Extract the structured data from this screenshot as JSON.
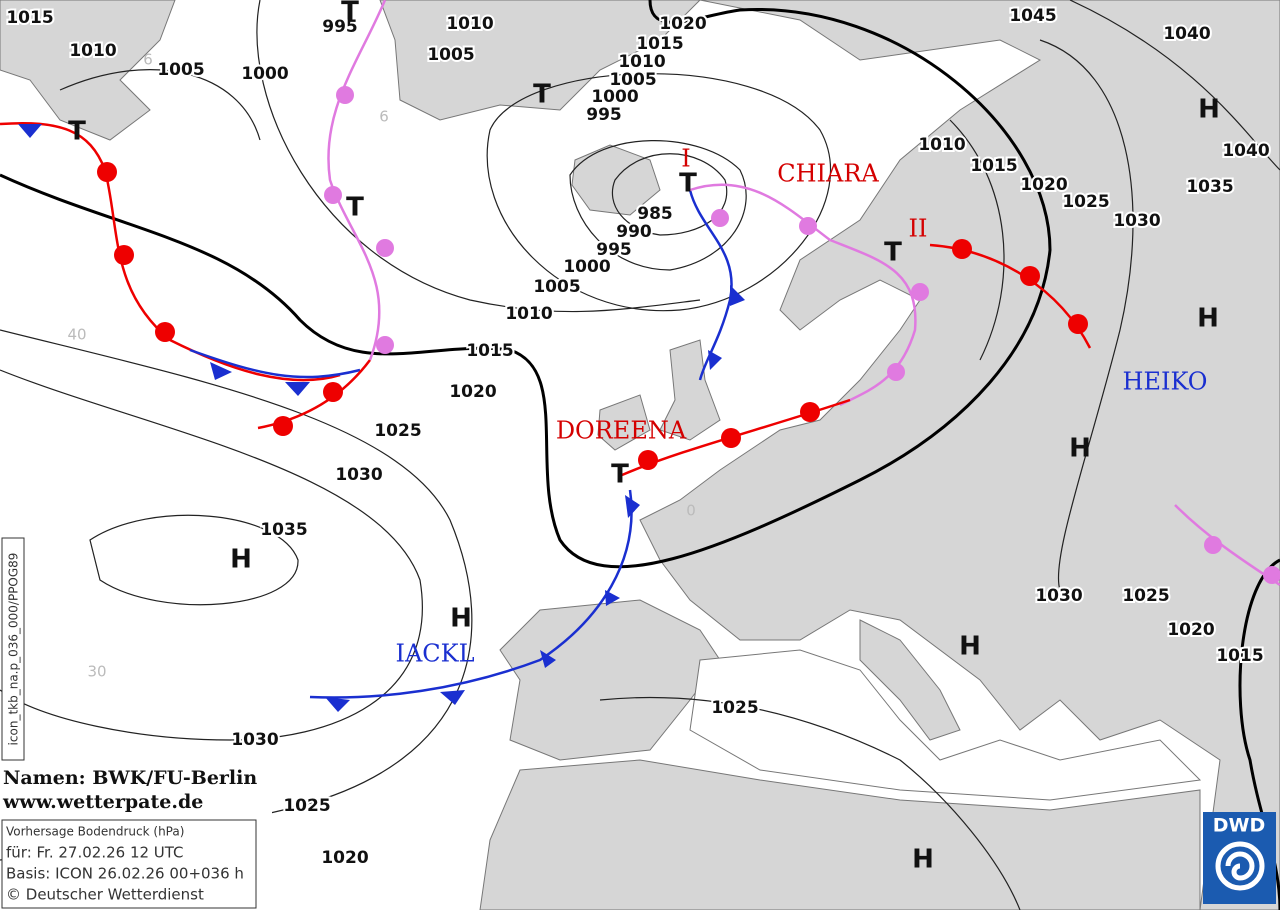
{
  "isobar_labels": [
    "1015",
    "1010",
    "1005",
    "1000",
    "995",
    "1010",
    "1005",
    "1020",
    "1015",
    "1010",
    "1005",
    "1000",
    "995",
    "985",
    "990",
    "995",
    "1000",
    "1005",
    "1010",
    "1015",
    "1020",
    "1025",
    "1030",
    "1035",
    "1030",
    "1025",
    "1020",
    "1025",
    "1030",
    "1025",
    "1020",
    "1015",
    "1045",
    "1040",
    "1040",
    "1035",
    "1030",
    "1025",
    "1020",
    "1015",
    "1010"
  ],
  "pressure_centers": [
    "T",
    "T",
    "T",
    "T",
    "T",
    "T",
    "T",
    "H",
    "H",
    "H",
    "H",
    "H",
    "H",
    "H"
  ],
  "system_names": [
    "I",
    "CHIARA",
    "II",
    "HEIKO",
    "DOREENA",
    "IACKL"
  ],
  "grid_labels": [
    "6",
    "6",
    "40",
    "30",
    "0"
  ],
  "credits": {
    "names": "Namen: BWK/FU-Berlin",
    "website": "www.wetterpate.de"
  },
  "info_box": {
    "title": "Vorhersage Bodendruck (hPa)",
    "valid": "für:  Fr. 27.02.26  12 UTC",
    "basis": "Basis: ICON  26.02.26 00+036 h",
    "copyright": "© Deutscher Wetterdienst"
  },
  "sidebar_code": "icon_tkb_na.p_036_000/PPOG89",
  "logo": "DWD"
}
